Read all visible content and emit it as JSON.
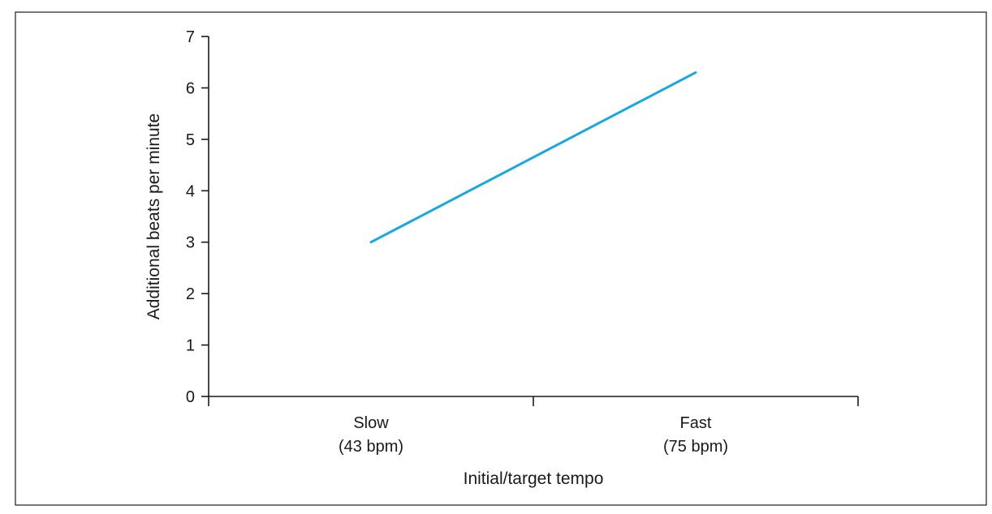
{
  "chart_data": {
    "type": "line",
    "xlabel": "Initial/target tempo",
    "ylabel": "Additional beats per minute",
    "categories": [
      {
        "line1": "Slow",
        "line2": "(43 bpm)"
      },
      {
        "line1": "Fast",
        "line2": "(75 bpm)"
      }
    ],
    "ylim": [
      0,
      7
    ],
    "yticks": [
      0,
      1,
      2,
      3,
      4,
      5,
      6,
      7
    ],
    "series": [
      {
        "values": [
          3.0,
          6.3
        ],
        "color": "#1aa7e0"
      }
    ],
    "grid": false,
    "legend": "none"
  }
}
